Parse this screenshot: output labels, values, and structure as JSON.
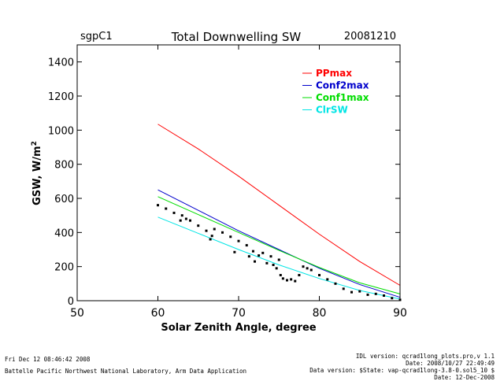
{
  "chart_data": {
    "type": "scatter",
    "header_left": "sgpC1",
    "title": "Total Downwelling SW",
    "header_right": "20081210",
    "xlabel": "Solar Zenith Angle, degree",
    "ylabel_prefix": "GSW, W/m",
    "ylabel_sup": "2",
    "xlim": [
      50,
      90
    ],
    "ylim": [
      0,
      1500
    ],
    "xticks": [
      "50",
      "60",
      "70",
      "80",
      "90"
    ],
    "yticks": [
      "0",
      "200",
      "400",
      "600",
      "800",
      "1000",
      "1200",
      "1400"
    ],
    "xtick_values": [
      50,
      60,
      70,
      80,
      90
    ],
    "ytick_values": [
      0,
      200,
      400,
      600,
      800,
      1000,
      1200,
      1400
    ],
    "legend_position": "top-right",
    "series": [
      {
        "name": "PPmax",
        "color": "#ff0000",
        "kind": "line",
        "x": [
          60,
          65,
          70,
          75,
          80,
          85,
          90
        ],
        "y": [
          1035,
          890,
          730,
          560,
          390,
          230,
          90
        ]
      },
      {
        "name": "Conf2max",
        "color": "#0000cc",
        "kind": "line",
        "x": [
          60,
          65,
          70,
          75,
          80,
          85,
          90
        ],
        "y": [
          650,
          530,
          410,
          300,
          190,
          95,
          20
        ]
      },
      {
        "name": "Conf1max",
        "color": "#00dd00",
        "kind": "line",
        "x": [
          60,
          65,
          70,
          75,
          80,
          85,
          90
        ],
        "y": [
          610,
          505,
          400,
          295,
          195,
          105,
          40
        ]
      },
      {
        "name": "ClrSW",
        "color": "#00e5e5",
        "kind": "line",
        "x": [
          60,
          65,
          70,
          75,
          80,
          85,
          90
        ],
        "y": [
          490,
          395,
          300,
          210,
          130,
          60,
          10
        ]
      },
      {
        "name": "",
        "color": "#000000",
        "kind": "scatter",
        "x": [
          60,
          61,
          62,
          62.8,
          63,
          63.5,
          64,
          65,
          66,
          66.5,
          66.7,
          67,
          68,
          69,
          69.5,
          70,
          71,
          71.3,
          71.8,
          72,
          72.5,
          73,
          73.5,
          74,
          74.3,
          74.7,
          75,
          75.2,
          75.5,
          76,
          76.5,
          77,
          77.5,
          78,
          78.5,
          79,
          80,
          81,
          82,
          83,
          84,
          85,
          86,
          87,
          88,
          89,
          90
        ],
        "y": [
          560,
          540,
          515,
          470,
          500,
          480,
          470,
          440,
          410,
          360,
          380,
          420,
          400,
          375,
          285,
          350,
          325,
          260,
          290,
          230,
          265,
          280,
          220,
          260,
          210,
          190,
          240,
          150,
          130,
          120,
          125,
          115,
          150,
          200,
          190,
          180,
          150,
          125,
          100,
          70,
          50,
          55,
          35,
          40,
          30,
          15,
          5
        ]
      }
    ]
  },
  "footer": {
    "left_line1": "Fri Dec 12 08:46:42 2008",
    "left_line2": "Battelle Pacific Northwest National Laboratory, Arm Data Application",
    "right_line1": "IDL version: qcrad1long_plots.pro,v 1.1",
    "right_line2": "Date: 2008/10/27 22:49:49",
    "right_line3": "Data version: $State: vap-qcrad1long-3.8-0.sol5_10 $",
    "right_line4": "Date: 12-Dec-2008"
  }
}
